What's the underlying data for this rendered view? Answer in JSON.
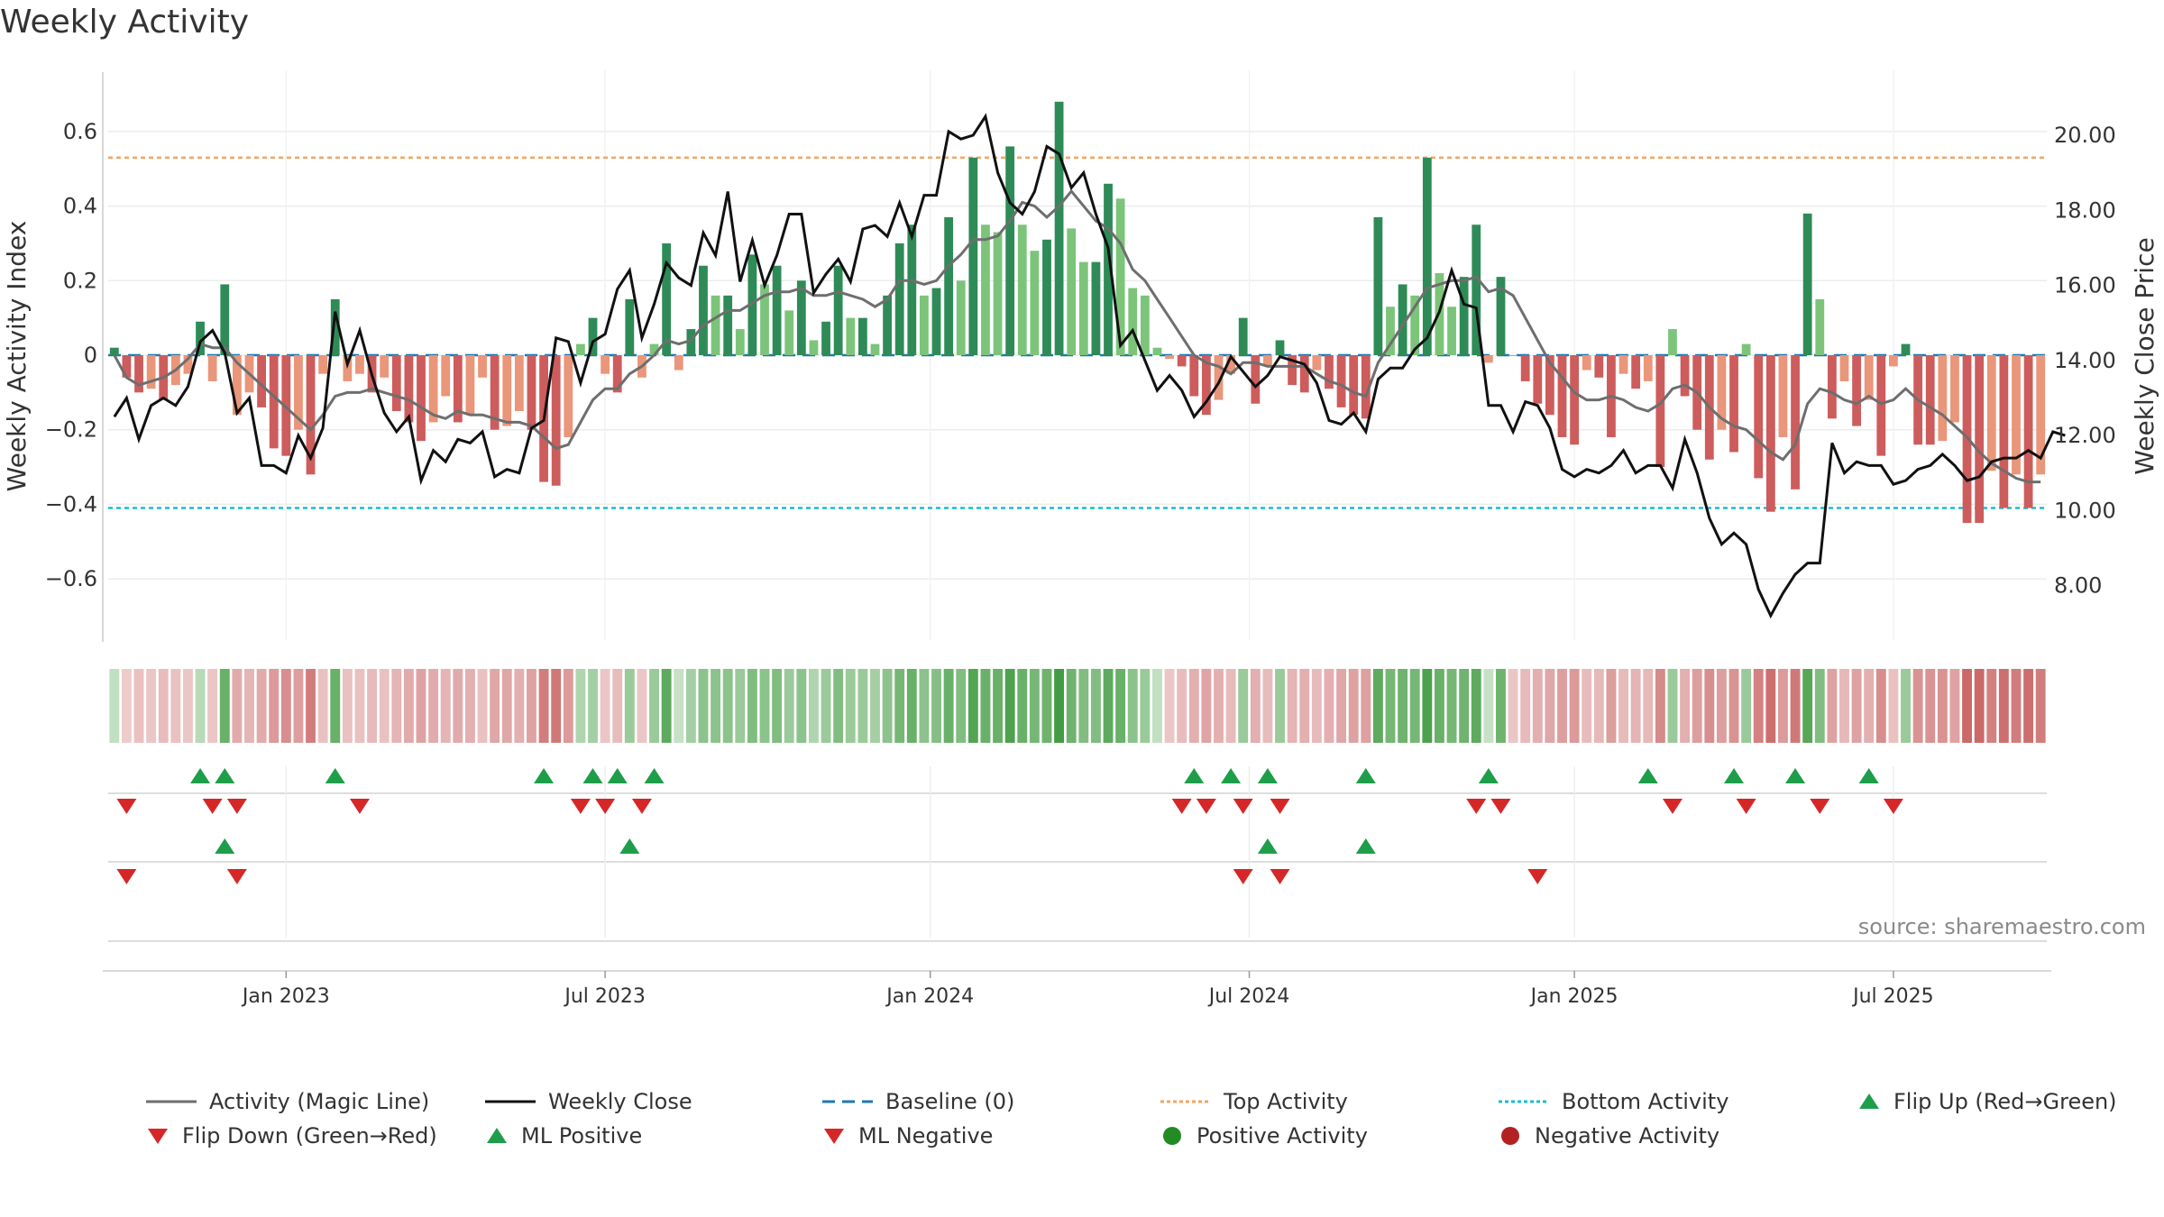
{
  "title": "Weekly Activity",
  "source": "source: sharemaestro.com",
  "colors": {
    "up_strong": "#2e8b57",
    "up_light": "#7cc47a",
    "down_strong": "#cd5c5c",
    "down_light": "#e9967a",
    "magic_line": "#6e6e6e",
    "close_line": "#111111",
    "baseline": "#1f77b4",
    "top_line": "#f4a460",
    "bottom_line": "#17becf",
    "flip_up": "#1e9e4a",
    "flip_down": "#d62728"
  },
  "chart_data": {
    "type": "bar",
    "title": "Weekly Activity",
    "ylabel": "Weekly Activity Index",
    "y2label": "Weekly Close Price",
    "ylim": [
      -0.74,
      0.74
    ],
    "y2lim": [
      6.79,
      21.49
    ],
    "yticks": [
      {
        "v": 0.6,
        "l": "0.6"
      },
      {
        "v": 0.4,
        "l": "0.4"
      },
      {
        "v": 0.2,
        "l": "0.2"
      },
      {
        "v": 0,
        "l": "0"
      },
      {
        "v": -0.2,
        "l": "−0.2"
      },
      {
        "v": -0.4,
        "l": "−0.4"
      },
      {
        "v": -0.6,
        "l": "−0.6"
      }
    ],
    "y2ticks": [
      {
        "v": 20,
        "l": "20.00"
      },
      {
        "v": 18,
        "l": "18.00"
      },
      {
        "v": 16,
        "l": "16.00"
      },
      {
        "v": 14,
        "l": "14.00"
      },
      {
        "v": 12,
        "l": "12.00"
      },
      {
        "v": 10,
        "l": "10.00"
      },
      {
        "v": 8,
        "l": "8.00"
      }
    ],
    "xticks": [
      {
        "i": 14.5,
        "l": "Jan 2023"
      },
      {
        "i": 40.5,
        "l": "Jul 2023"
      },
      {
        "i": 67,
        "l": "Jan 2024"
      },
      {
        "i": 93,
        "l": "Jul 2024"
      },
      {
        "i": 119.5,
        "l": "Jan 2025"
      },
      {
        "i": 145.5,
        "l": "Jul 2025"
      }
    ],
    "top_activity": 0.53,
    "bottom_activity": -0.41,
    "baseline": 0,
    "activity": [
      0.02,
      -0.06,
      -0.1,
      -0.09,
      -0.12,
      -0.08,
      -0.05,
      0.09,
      -0.07,
      0.19,
      -0.16,
      -0.1,
      -0.14,
      -0.25,
      -0.27,
      -0.2,
      -0.32,
      -0.05,
      0.15,
      -0.07,
      -0.05,
      -0.1,
      -0.06,
      -0.15,
      -0.18,
      -0.23,
      -0.18,
      -0.11,
      -0.18,
      -0.16,
      -0.06,
      -0.2,
      -0.19,
      -0.15,
      -0.2,
      -0.34,
      -0.35,
      -0.22,
      0.03,
      0.1,
      -0.05,
      -0.1,
      0.15,
      -0.06,
      0.03,
      0.3,
      -0.04,
      0.07,
      0.24,
      0.16,
      0.16,
      0.07,
      0.27,
      0.19,
      0.24,
      0.12,
      0.2,
      0.04,
      0.09,
      0.24,
      0.1,
      0.1,
      0.03,
      0.16,
      0.3,
      0.35,
      0.16,
      0.18,
      0.37,
      0.2,
      0.53,
      0.35,
      0.33,
      0.56,
      0.35,
      0.28,
      0.31,
      0.68,
      0.34,
      0.25,
      0.25,
      0.46,
      0.42,
      0.18,
      0.16,
      0.02,
      -0.01,
      -0.03,
      -0.11,
      -0.16,
      -0.12,
      -0.05,
      0.1,
      -0.13,
      -0.03,
      0.04,
      -0.08,
      -0.1,
      -0.04,
      -0.09,
      -0.14,
      -0.16,
      -0.17,
      0.37,
      0.13,
      0.19,
      0.16,
      0.53,
      0.22,
      0.13,
      0.21,
      0.35,
      -0.02,
      0.21,
      0.0,
      -0.07,
      -0.13,
      -0.16,
      -0.22,
      -0.24,
      -0.04,
      -0.06,
      -0.22,
      -0.05,
      -0.09,
      -0.07,
      -0.3,
      0.07,
      -0.11,
      -0.2,
      -0.28,
      -0.2,
      -0.26,
      0.03,
      -0.33,
      -0.42,
      -0.22,
      -0.36,
      0.38,
      0.15,
      -0.17,
      -0.07,
      -0.19,
      -0.12,
      -0.27,
      -0.03,
      0.03,
      -0.24,
      -0.24,
      -0.23,
      -0.18,
      -0.45,
      -0.45,
      -0.31,
      -0.41,
      -0.32,
      -0.41,
      -0.32
    ],
    "magic_line": [
      0.0,
      -0.06,
      -0.08,
      -0.07,
      -0.06,
      -0.04,
      -0.01,
      0.03,
      0.02,
      0.02,
      -0.02,
      -0.05,
      -0.08,
      -0.11,
      -0.14,
      -0.17,
      -0.2,
      -0.16,
      -0.11,
      -0.1,
      -0.1,
      -0.09,
      -0.1,
      -0.11,
      -0.12,
      -0.14,
      -0.16,
      -0.17,
      -0.15,
      -0.16,
      -0.16,
      -0.17,
      -0.18,
      -0.18,
      -0.19,
      -0.22,
      -0.25,
      -0.24,
      -0.18,
      -0.12,
      -0.09,
      -0.09,
      -0.05,
      -0.03,
      0.0,
      0.04,
      0.03,
      0.04,
      0.08,
      0.1,
      0.12,
      0.12,
      0.14,
      0.16,
      0.17,
      0.17,
      0.18,
      0.16,
      0.16,
      0.17,
      0.16,
      0.15,
      0.13,
      0.15,
      0.2,
      0.2,
      0.19,
      0.2,
      0.24,
      0.27,
      0.31,
      0.31,
      0.32,
      0.36,
      0.41,
      0.4,
      0.37,
      0.4,
      0.44,
      0.4,
      0.36,
      0.34,
      0.3,
      0.23,
      0.2,
      0.15,
      0.1,
      0.05,
      0.0,
      -0.02,
      -0.03,
      -0.05,
      -0.02,
      -0.02,
      -0.03,
      -0.03,
      -0.03,
      -0.03,
      -0.05,
      -0.07,
      -0.08,
      -0.1,
      -0.11,
      -0.02,
      0.03,
      0.08,
      0.13,
      0.18,
      0.19,
      0.2,
      0.2,
      0.21,
      0.17,
      0.18,
      0.16,
      0.1,
      0.04,
      -0.02,
      -0.06,
      -0.1,
      -0.12,
      -0.12,
      -0.11,
      -0.12,
      -0.14,
      -0.15,
      -0.13,
      -0.09,
      -0.08,
      -0.1,
      -0.14,
      -0.17,
      -0.19,
      -0.2,
      -0.23,
      -0.26,
      -0.28,
      -0.24,
      -0.13,
      -0.09,
      -0.1,
      -0.12,
      -0.13,
      -0.11,
      -0.13,
      -0.12,
      -0.09,
      -0.12,
      -0.14,
      -0.16,
      -0.19,
      -0.22,
      -0.26,
      -0.29,
      -0.31,
      -0.33,
      -0.34,
      -0.34
    ],
    "weekly_close": [
      12.5,
      13.0,
      11.9,
      12.8,
      13.0,
      12.8,
      13.3,
      14.5,
      14.8,
      14.2,
      12.6,
      13.0,
      11.2,
      11.2,
      11.0,
      12.0,
      11.4,
      12.2,
      15.3,
      13.9,
      14.8,
      13.6,
      12.6,
      12.1,
      12.5,
      10.8,
      11.6,
      11.3,
      11.9,
      11.8,
      12.1,
      10.9,
      11.1,
      11.0,
      12.2,
      12.4,
      14.6,
      14.5,
      13.4,
      14.5,
      14.7,
      15.9,
      16.4,
      14.6,
      15.5,
      16.6,
      16.2,
      16.0,
      17.4,
      16.8,
      18.5,
      16.1,
      17.2,
      16.0,
      16.8,
      17.9,
      17.9,
      15.8,
      16.3,
      16.7,
      16.1,
      17.5,
      17.6,
      17.3,
      18.2,
      17.3,
      18.4,
      18.4,
      20.1,
      19.9,
      20.0,
      20.5,
      19.0,
      18.2,
      17.9,
      18.5,
      19.7,
      19.5,
      18.6,
      19.0,
      17.9,
      17.0,
      14.4,
      14.8,
      14.0,
      13.2,
      13.6,
      13.2,
      12.5,
      12.9,
      13.4,
      14.1,
      13.7,
      13.3,
      13.6,
      14.1,
      14.0,
      13.9,
      13.4,
      12.4,
      12.3,
      12.6,
      12.1,
      13.5,
      13.8,
      13.8,
      14.3,
      14.6,
      15.3,
      16.4,
      15.5,
      15.4,
      12.8,
      12.8,
      12.1,
      12.9,
      12.8,
      12.2,
      11.1,
      10.9,
      11.1,
      11.0,
      11.2,
      11.6,
      11.0,
      11.2,
      11.2,
      10.6,
      11.9,
      11.0,
      9.8,
      9.1,
      9.4,
      9.1,
      7.9,
      7.2,
      7.8,
      8.3,
      8.6,
      8.6,
      11.8,
      11.0,
      11.3,
      11.2,
      11.2,
      10.7,
      10.8,
      11.1,
      11.2,
      11.5,
      11.2,
      10.8,
      10.9,
      11.3,
      11.4,
      11.4,
      11.6,
      11.4,
      12.1,
      12.0
    ],
    "heat_strip": [
      0.12,
      -0.08,
      -0.12,
      -0.1,
      -0.14,
      -0.12,
      -0.1,
      0.16,
      -0.1,
      0.5,
      -0.22,
      -0.18,
      -0.22,
      -0.3,
      -0.34,
      -0.28,
      -0.42,
      -0.12,
      0.5,
      -0.12,
      -0.12,
      -0.15,
      -0.12,
      -0.18,
      -0.22,
      -0.26,
      -0.22,
      -0.18,
      -0.22,
      -0.2,
      -0.12,
      -0.24,
      -0.24,
      -0.2,
      -0.26,
      -0.42,
      -0.44,
      -0.3,
      0.2,
      0.25,
      -0.1,
      -0.14,
      0.3,
      -0.1,
      0.3,
      0.55,
      0.1,
      0.25,
      0.35,
      0.35,
      0.35,
      0.3,
      0.4,
      0.35,
      0.4,
      0.3,
      0.35,
      0.2,
      0.3,
      0.4,
      0.3,
      0.3,
      0.25,
      0.35,
      0.45,
      0.5,
      0.35,
      0.38,
      0.5,
      0.4,
      0.6,
      0.5,
      0.5,
      0.62,
      0.5,
      0.45,
      0.48,
      0.7,
      0.48,
      0.4,
      0.4,
      0.55,
      0.5,
      0.35,
      0.3,
      0.12,
      -0.1,
      -0.14,
      -0.2,
      -0.25,
      -0.2,
      -0.15,
      0.3,
      -0.2,
      -0.14,
      0.3,
      -0.18,
      -0.2,
      -0.15,
      -0.2,
      -0.24,
      -0.26,
      -0.27,
      0.55,
      0.45,
      0.48,
      0.45,
      0.62,
      0.5,
      0.45,
      0.48,
      0.55,
      0.1,
      0.48,
      -0.1,
      -0.15,
      -0.2,
      -0.24,
      -0.28,
      -0.3,
      -0.14,
      -0.16,
      -0.28,
      -0.15,
      -0.18,
      -0.16,
      -0.36,
      0.3,
      -0.2,
      -0.28,
      -0.34,
      -0.28,
      -0.32,
      0.3,
      -0.4,
      -0.48,
      -0.3,
      -0.44,
      0.58,
      0.4,
      -0.26,
      -0.16,
      -0.26,
      -0.2,
      -0.34,
      -0.12,
      0.3,
      -0.32,
      -0.32,
      -0.32,
      -0.26,
      -0.5,
      -0.5,
      -0.4,
      -0.48,
      -0.42,
      -0.48,
      -0.42
    ],
    "flip_up": [
      7,
      9,
      18,
      35,
      39,
      41,
      44,
      88,
      91,
      94,
      102,
      112,
      125,
      132,
      137,
      143
    ],
    "flip_down": [
      1,
      8,
      10,
      20,
      38,
      40,
      43,
      87,
      89,
      92,
      95,
      111,
      113,
      127,
      133,
      139,
      145
    ],
    "ml_positive": [
      9,
      42,
      94,
      102
    ],
    "ml_negative": [
      1,
      10,
      92,
      95,
      116
    ],
    "legend": [
      {
        "label": "Activity (Magic Line)",
        "kind": "line-solid",
        "color": "#6e6e6e"
      },
      {
        "label": "Weekly Close",
        "kind": "line-solid",
        "color": "#111111"
      },
      {
        "label": "Baseline (0)",
        "kind": "line-dash",
        "color": "#1f77b4"
      },
      {
        "label": "Top Activity",
        "kind": "line-dot",
        "color": "#f4a460"
      },
      {
        "label": "Bottom Activity",
        "kind": "line-dot",
        "color": "#17becf"
      },
      {
        "label": "Flip Up (Red→Green)",
        "kind": "tri-up",
        "color": "#1e9e4a"
      },
      {
        "label": "Flip Down (Green→Red)",
        "kind": "tri-down",
        "color": "#d62728"
      },
      {
        "label": "ML Positive",
        "kind": "tri-up",
        "color": "#1e9e4a"
      },
      {
        "label": "ML Negative",
        "kind": "tri-down",
        "color": "#d62728"
      },
      {
        "label": "Positive Activity",
        "kind": "dot",
        "color": "#228b22"
      },
      {
        "label": "Negative Activity",
        "kind": "dot",
        "color": "#b22222"
      }
    ]
  }
}
